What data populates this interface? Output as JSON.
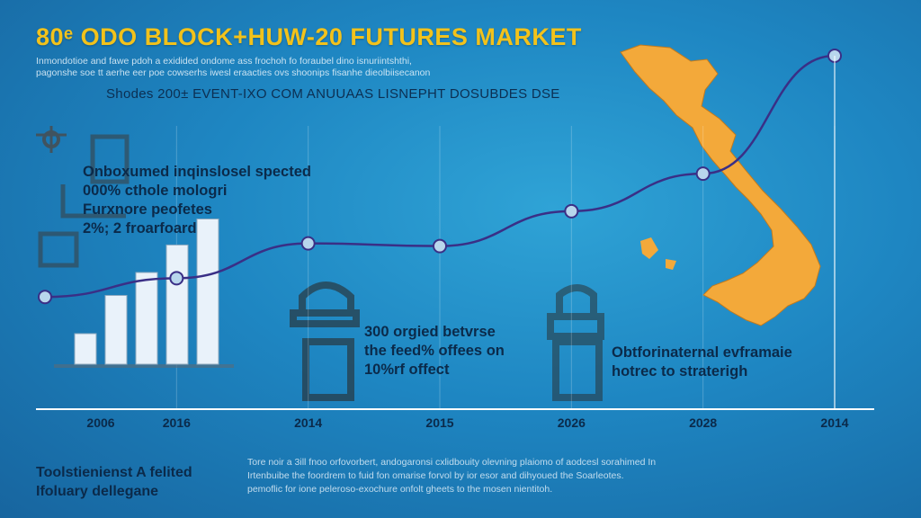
{
  "title": "80ᵉ ODO BLOCK+HUW-20 FUTURES MARKET",
  "subtitle_lines": [
    "Inmondotioe and fawe pdoh a exidided ondome ass frochoh fo foraubel dino isnuriintshthi,",
    "pagonshe soe tt aerhe eer poe cowserhs iwesl eraacties ovs shoonips fisanhe dieolbiisecanon"
  ],
  "subheading": "Shodes 200± EVENT-IXO COM ANUUAAS LISNEPHT DOSUBDES DSE",
  "notes": [
    [
      "Onboxumed inqinslosel spected",
      "000% cthole mologri",
      "Furxnore peofetes",
      "2%; 2 froarfoard"
    ],
    [
      "300 orgied betvrse",
      "the feed% offees on",
      "10%rf offect"
    ],
    [
      "Obtforinaternal evframaie",
      "hotrec to straterigh"
    ]
  ],
  "footer_left": [
    "Toolstienienst A felited",
    "Ifoluary dellegane"
  ],
  "footer_right": [
    "Tore noir a 3ill fnoo orfovorbert, andogaronsi cxlidbouity olevning plaiomo of aodcesl sorahimed In",
    "Irtenbuibe the foordrem to fuid fon omarise forvol by ior esor and dihyoued the Soarleotes.",
    "pemoflic for ione peleroso-exochure onfolt gheets to the mosen nientitoh."
  ],
  "chart_data": {
    "type": "line",
    "x": [
      "2006",
      "2016",
      "2014",
      "2015",
      "2026",
      "2028",
      "2014"
    ],
    "series": [
      {
        "values": [
          10,
          17,
          30,
          29,
          42,
          56,
          100
        ]
      }
    ],
    "bars": {
      "type": "bar",
      "values": [
        20,
        45,
        60,
        78,
        95
      ]
    },
    "ylim": [
      0,
      100
    ],
    "grid": "vertical",
    "legend": "none",
    "colors": {
      "line": "#3a2f86",
      "marker_fill": "#b8d6ec",
      "map": "#f3a93a",
      "bars": "#e9f2fa",
      "axis": "#ffffff"
    },
    "decorations": [
      "gear-icon",
      "padlock-icon",
      "vietnam-map"
    ]
  }
}
